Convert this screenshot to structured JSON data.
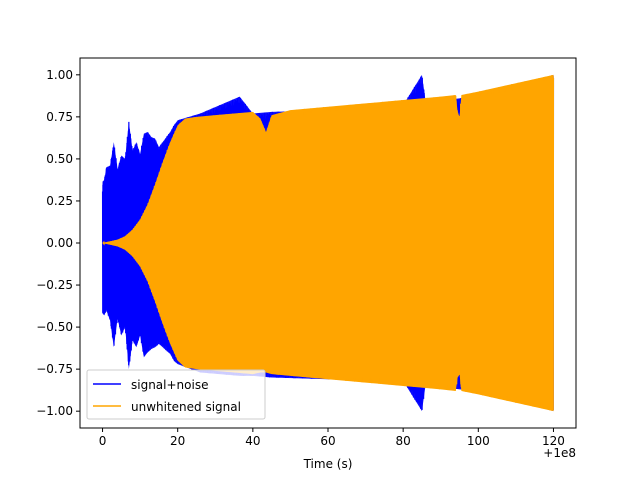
{
  "chart_data": {
    "type": "line",
    "title": "",
    "xlabel": "Time (s)",
    "ylabel": "",
    "x_offset_label": "+1e8",
    "xlim": [
      -6,
      126
    ],
    "ylim": [
      -1.1,
      1.1
    ],
    "x_ticks": [
      0,
      20,
      40,
      60,
      80,
      100,
      120
    ],
    "x_tick_labels": [
      "0",
      "20",
      "40",
      "60",
      "80",
      "100",
      "120"
    ],
    "y_ticks": [
      -1.0,
      -0.75,
      -0.5,
      -0.25,
      0.0,
      0.25,
      0.5,
      0.75,
      1.0
    ],
    "y_tick_labels": [
      "−1.00",
      "−0.75",
      "−0.50",
      "−0.25",
      "0.00",
      "0.25",
      "0.50",
      "0.75",
      "1.00"
    ],
    "grid": false,
    "legend_position": "lower-left",
    "series": [
      {
        "name": "signal+noise",
        "color": "#0000ff",
        "envelope": {
          "x": [
            0,
            0.5,
            1,
            2,
            3,
            4,
            5,
            6,
            7,
            8,
            9,
            10,
            11,
            12,
            13,
            14,
            15,
            16,
            17,
            18,
            19,
            20,
            26,
            36.5,
            40,
            45,
            60,
            80,
            85,
            86,
            95,
            100,
            110,
            120
          ],
          "upper": [
            0.36,
            0.38,
            0.45,
            0.46,
            0.6,
            0.44,
            0.52,
            0.5,
            0.72,
            0.55,
            0.6,
            0.53,
            0.65,
            0.66,
            0.63,
            0.62,
            0.57,
            0.6,
            0.63,
            0.66,
            0.7,
            0.73,
            0.77,
            0.87,
            0.77,
            0.78,
            0.79,
            0.82,
            1.0,
            0.84,
            0.86,
            0.88,
            0.93,
            1.0
          ],
          "lower": [
            -0.42,
            -0.43,
            -0.4,
            -0.46,
            -0.62,
            -0.45,
            -0.55,
            -0.5,
            -0.75,
            -0.58,
            -0.62,
            -0.55,
            -0.68,
            -0.65,
            -0.63,
            -0.62,
            -0.6,
            -0.62,
            -0.64,
            -0.66,
            -0.7,
            -0.72,
            -0.77,
            -0.79,
            -0.79,
            -0.8,
            -0.81,
            -0.82,
            -1.0,
            -0.84,
            -0.87,
            -0.88,
            -0.94,
            -1.0
          ]
        }
      },
      {
        "name": "unwhitened signal",
        "color": "#ffa500",
        "envelope": {
          "x": [
            0,
            2,
            4,
            6,
            8,
            10,
            12,
            14,
            16,
            18,
            20,
            22,
            25,
            30,
            40,
            42,
            43.5,
            45,
            50,
            60,
            70,
            80,
            85,
            90,
            94,
            94.5,
            95,
            95.5,
            100,
            110,
            120
          ],
          "upper": [
            0.0,
            0.01,
            0.02,
            0.04,
            0.08,
            0.14,
            0.23,
            0.35,
            0.48,
            0.6,
            0.7,
            0.74,
            0.75,
            0.76,
            0.78,
            0.74,
            0.66,
            0.76,
            0.79,
            0.81,
            0.83,
            0.85,
            0.86,
            0.87,
            0.88,
            0.78,
            0.75,
            0.88,
            0.9,
            0.95,
            1.0
          ],
          "lower": [
            0.0,
            -0.01,
            -0.02,
            -0.04,
            -0.08,
            -0.14,
            -0.23,
            -0.35,
            -0.48,
            -0.6,
            -0.7,
            -0.74,
            -0.75,
            -0.76,
            -0.78,
            -0.77,
            -0.77,
            -0.78,
            -0.79,
            -0.81,
            -0.83,
            -0.85,
            -0.86,
            -0.87,
            -0.88,
            -0.8,
            -0.78,
            -0.88,
            -0.9,
            -0.95,
            -1.0
          ]
        }
      }
    ]
  }
}
